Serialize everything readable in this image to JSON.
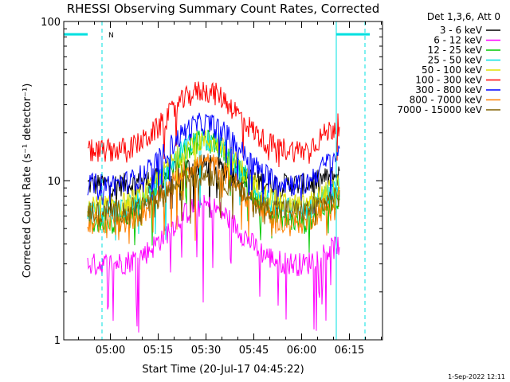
{
  "chart_data": {
    "type": "line",
    "title": "RHESSI Observing Summary Count Rates, Corrected",
    "xlabel": "Start Time (20-Jul-17 04:45:22)",
    "ylabel": "Corrected Count Rate (s⁻¹ detector⁻¹)",
    "yscale": "log",
    "ylim": [
      1,
      100
    ],
    "xlim_minutes": [
      0,
      100
    ],
    "y_tick_labels": [
      "1",
      "10",
      "100"
    ],
    "x_tick_labels": [
      "05:00",
      "05:15",
      "05:30",
      "05:45",
      "06:00",
      "06:15"
    ],
    "x_tick_minutes": [
      14.63,
      29.63,
      44.63,
      59.63,
      74.63,
      89.63
    ],
    "legend_title": "Det 1,3,6, Att 0",
    "legend_position": "top-right",
    "data_start_minute": 7.5,
    "data_end_minute": 86.5,
    "peak_minute": 44,
    "peak_width_minutes": 13,
    "series": [
      {
        "name": "3 - 6 keV",
        "color": "#000000",
        "base": 9.5,
        "peak": 12.5,
        "end": 11.0,
        "min": 5.5
      },
      {
        "name": "6 - 12 keV",
        "color": "#ff00ff",
        "base": 3.0,
        "peak": 7.0,
        "end": 4.0,
        "min": 1.1
      },
      {
        "name": "12 - 25 keV",
        "color": "#00c800",
        "base": 5.5,
        "peak": 18.0,
        "end": 8.0,
        "min": 3.5
      },
      {
        "name": "25 - 50 keV",
        "color": "#00e0e0",
        "base": 6.5,
        "peak": 18.5,
        "end": 9.0,
        "min": 4.0
      },
      {
        "name": "50 - 100 keV",
        "color": "#e0e000",
        "base": 7.0,
        "peak": 18.0,
        "end": 9.5,
        "min": 5.0
      },
      {
        "name": "100 - 300 keV",
        "color": "#ff0000",
        "base": 15.5,
        "peak": 37.0,
        "end": 23.0,
        "min": 12.0
      },
      {
        "name": "300 - 800 keV",
        "color": "#0000ff",
        "base": 9.5,
        "peak": 23.0,
        "end": 15.0,
        "min": 7.0
      },
      {
        "name": "800 - 7000 keV",
        "color": "#ff8000",
        "base": 5.5,
        "peak": 13.0,
        "end": 8.0,
        "min": 4.0
      },
      {
        "name": "7000 - 15000 keV",
        "color": "#806000",
        "base": 6.5,
        "peak": 11.0,
        "end": 8.0,
        "min": 5.0
      }
    ],
    "saa_intervals_minutes": [
      [
        0,
        7.5
      ],
      [
        85.5,
        96
      ]
    ],
    "saa_level": 83,
    "night_boundaries_minutes": [
      12,
      94.5
    ],
    "night_marker_text": "N"
  },
  "footer": {
    "timestamp": "1-Sep-2022 12:11"
  },
  "colors": {
    "saa": "#00e0e0",
    "axes": "#000000",
    "background": "#ffffff"
  }
}
